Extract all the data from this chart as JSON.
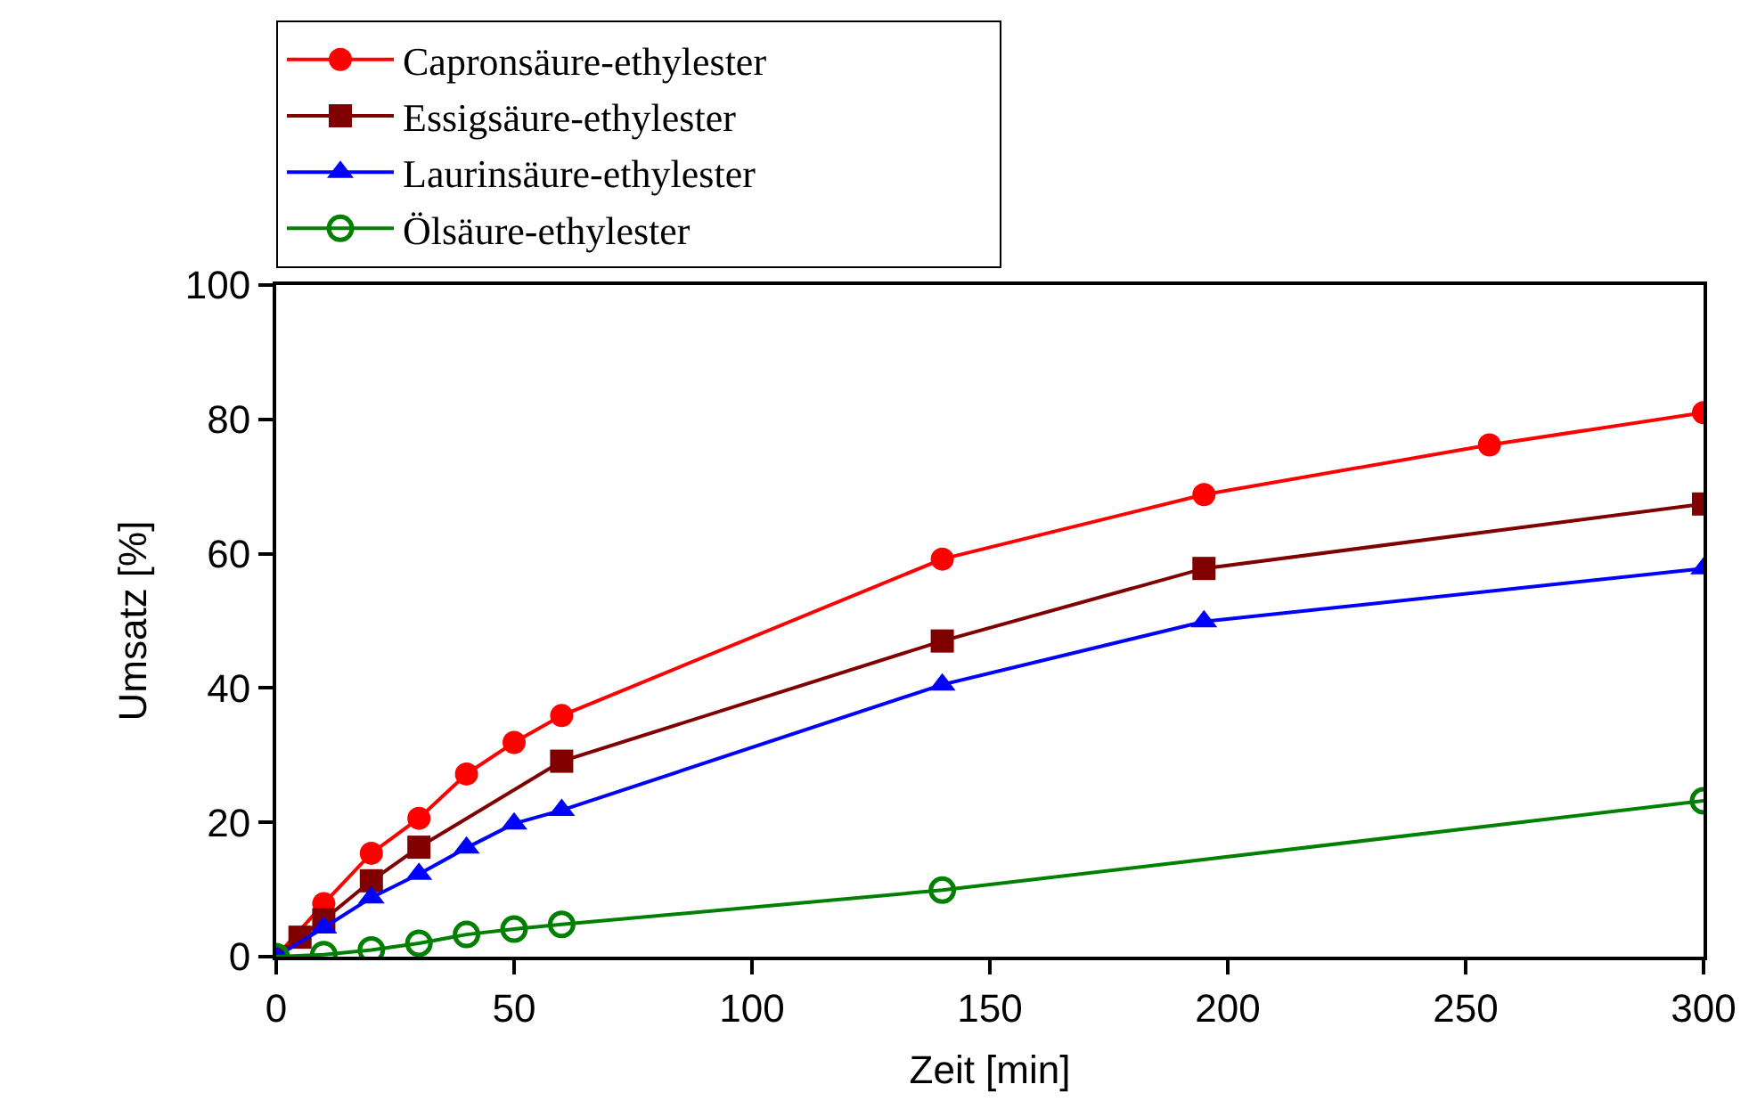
{
  "chart_data": {
    "type": "line",
    "xlabel": "Zeit [min]",
    "ylabel": "Umsatz [%]",
    "xlim": [
      0,
      300
    ],
    "xticks": [
      0,
      50,
      100,
      150,
      200,
      250,
      300
    ],
    "ylim": [
      0,
      100
    ],
    "yticks": [
      0,
      20,
      40,
      60,
      80,
      100
    ],
    "legend": "top",
    "line_style": "solid",
    "series": [
      {
        "name": "Capronsäure-ethylester",
        "color": "#ff0000",
        "marker": "circle",
        "x": [
          0,
          10,
          20,
          30,
          40,
          50,
          60,
          140,
          195,
          255,
          300
        ],
        "values": [
          0,
          7.9,
          15.4,
          20.6,
          27.2,
          31.9,
          35.9,
          59.2,
          68.8,
          76.2,
          81.0
        ]
      },
      {
        "name": "Essigsäure-ethylester",
        "color": "#800000",
        "marker": "square",
        "x": [
          0,
          5,
          10,
          20,
          30,
          60,
          140,
          195,
          300
        ],
        "values": [
          0,
          2.9,
          5.5,
          11.3,
          16.3,
          29.1,
          47.0,
          57.8,
          67.4
        ]
      },
      {
        "name": "Laurinsäure-ethylester",
        "color": "#0000ff",
        "marker": "triangle",
        "x": [
          0,
          10,
          20,
          30,
          40,
          50,
          60,
          140,
          195,
          300
        ],
        "values": [
          0,
          4.3,
          8.8,
          12.3,
          16.2,
          19.8,
          21.8,
          40.5,
          49.9,
          57.8
        ]
      },
      {
        "name": "Ölsäure-ethylester",
        "color": "#008000",
        "marker": "circle-open",
        "x": [
          0,
          10,
          20,
          30,
          40,
          50,
          60,
          140,
          300
        ],
        "values": [
          0,
          0.3,
          1.0,
          2.0,
          3.3,
          4.1,
          4.8,
          9.9,
          23.2
        ]
      }
    ]
  }
}
